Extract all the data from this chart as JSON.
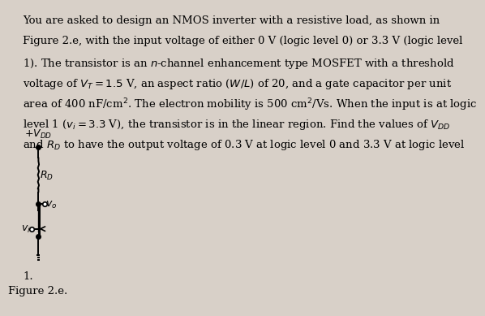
{
  "background_color": "#d8d0c8",
  "text_block": "You are asked to design an NMOS inverter with a resistive load, as shown in Figure 2.e, with the input voltage of either 0 V (logic level 0) or 3.3 V (logic level 1). The transistor is an n-channel enhancement type MOSFET with a threshold voltage of $V_T = 1.5$ V, an aspect ratio ($W/L$) of 20, and a gate capacitor per unit area of 400 nF/cm$^2$. The electron mobility is 500 cm$^2$/Vs. When the input is at logic level 1 ($v_i = 3.3$ V), the transistor is in the linear region. Find the values of $V_{DD}$ and $R_D$ to have the output voltage of 0.3 V at logic level 0 and 3.3 V at logic level",
  "figure_caption": "Figure 2.e.",
  "footnote": "1.",
  "font_size_text": 9.5,
  "font_size_caption": 9.5,
  "circuit": {
    "vdd_label": "$+V_{DD}$",
    "rd_label": "$R_D$",
    "vo_label": "$v_o$",
    "vi_label": "$v_i$"
  }
}
